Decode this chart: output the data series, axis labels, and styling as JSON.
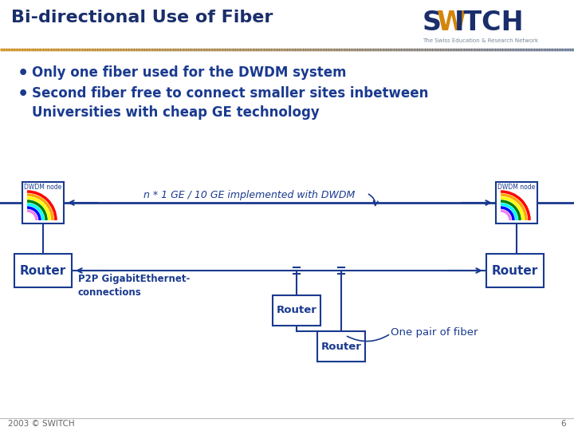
{
  "title": "Bi-directional Use of Fiber",
  "title_color": "#1a2e6b",
  "title_fontsize": 16,
  "bg_color": "#ffffff",
  "bullet1": "Only one fiber used for the DWDM system",
  "bullet2": "Second fiber free to connect smaller sites inbetween\nUniversities with cheap GE technology",
  "bullet_color": "#1a3a8f",
  "bullet_fontsize": 12,
  "switch_S": "#1a2e6b",
  "switch_W": "#d4860a",
  "switch_ITCH": "#1a2e6b",
  "switch_sub": "The Swiss Education & Research Network",
  "box_color": "#1a3a8f",
  "node_label": "DWDM node",
  "router_label": "Router",
  "dwdm_label": "n * 1 GE / 10 GE implemented with DWDM",
  "p2p_label": "P2P GigabitEthernet-\nconnections",
  "one_pair_label": "One pair of fiber",
  "footer_text": "2003 © SWITCH",
  "footer_page": "6",
  "arc_colors": [
    "red",
    "orange",
    "yellow",
    "green",
    "cyan",
    "blue",
    "violet"
  ]
}
